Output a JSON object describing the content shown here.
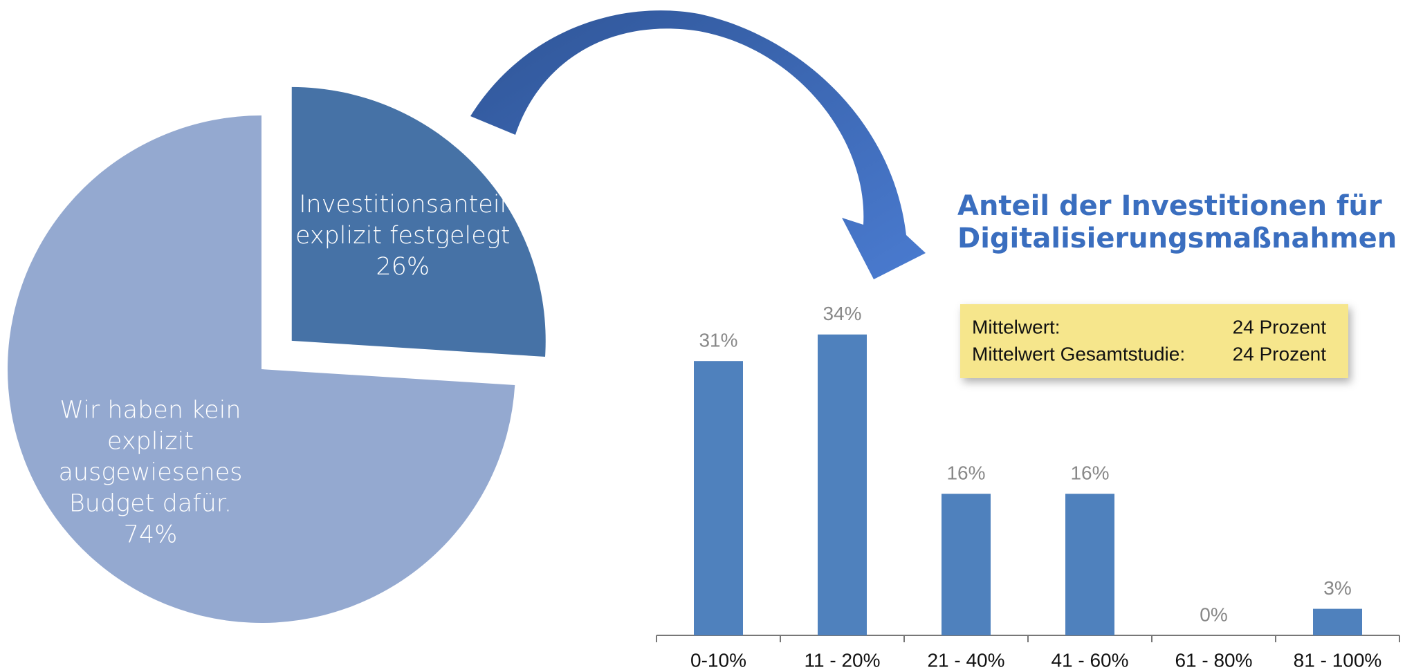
{
  "chart_data": [
    {
      "type": "pie",
      "categories": [
        "Investitionsanteil\nexplizit festgelegt",
        "Wir haben kein\nexplizit\nausgewiesenes\nBudget dafür."
      ],
      "values": [
        26,
        74
      ],
      "value_labels": [
        "26%",
        "74%"
      ],
      "colors": [
        "#4672a6",
        "#94a9d0"
      ],
      "explode": [
        true,
        false
      ]
    },
    {
      "type": "bar",
      "title": "Anteil der Investitionen für\nDigitalisierungsmaßnahmen",
      "categories": [
        "0-10%",
        "11 - 20%",
        "21 - 40%",
        "41 - 60%",
        "61 - 80%",
        "81 - 100%"
      ],
      "values": [
        31,
        34,
        16,
        16,
        0,
        3
      ],
      "value_labels": [
        "31%",
        "34%",
        "16%",
        "16%",
        "0%",
        "3%"
      ],
      "color": "#4f81bd",
      "annotations": [
        {
          "label": "Mittelwert:",
          "text": "24 Prozent"
        },
        {
          "label": "Mittelwert Gesamtstudie:",
          "text": "24 Prozent"
        }
      ]
    }
  ]
}
